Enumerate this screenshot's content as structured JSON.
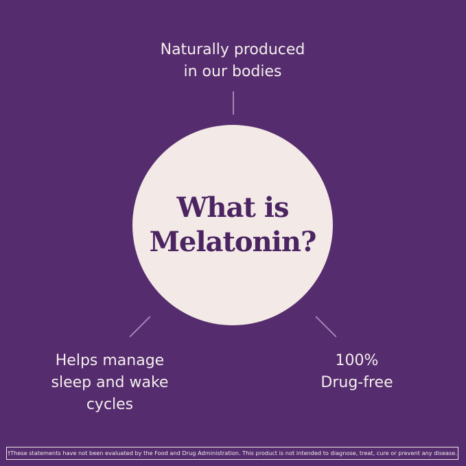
{
  "center_title": "What is\nMelatonin?",
  "facts": {
    "top": "Naturally produced\nin our bodies",
    "left": "Helps manage\nsleep and wake\ncycles",
    "right": "100%\nDrug-free"
  },
  "disclaimer": "†These statements have not been evaluated by the Food and Drug Administration. This product is not intended to diagnose, treat, cure or prevent any disease.",
  "colors": {
    "background": "#552c6d",
    "circle": "#f3e9e6",
    "title": "#4b2462"
  }
}
